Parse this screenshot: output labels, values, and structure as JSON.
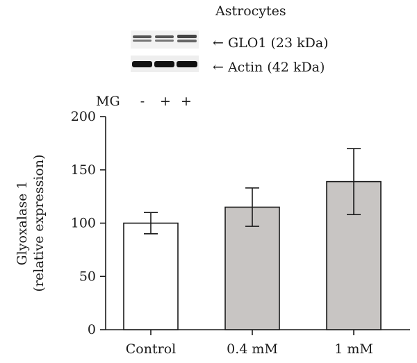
{
  "blot": {
    "title": "Astrocytes",
    "bands": [
      {
        "label": "← GLO1 (23 kDa)"
      },
      {
        "label": "← Actin (42 kDa)"
      }
    ],
    "treatment_label": "MG",
    "treatment_marks": [
      "-",
      "+",
      "+"
    ]
  },
  "chart_data": {
    "type": "bar",
    "title": "",
    "xlabel": "",
    "ylabel_lines": [
      "Glyoxalase 1",
      "(relative expression)"
    ],
    "categories": [
      "Control",
      "0.4 mM",
      "1 mM"
    ],
    "values": [
      100,
      115,
      139
    ],
    "errors": [
      10,
      18,
      31
    ],
    "bar_colors": [
      "#ffffff",
      "#c8c5c3",
      "#c8c5c3"
    ],
    "ylim": [
      0,
      200
    ],
    "yticks": [
      0,
      50,
      100,
      150,
      200
    ],
    "grid": false,
    "legend": "none"
  }
}
